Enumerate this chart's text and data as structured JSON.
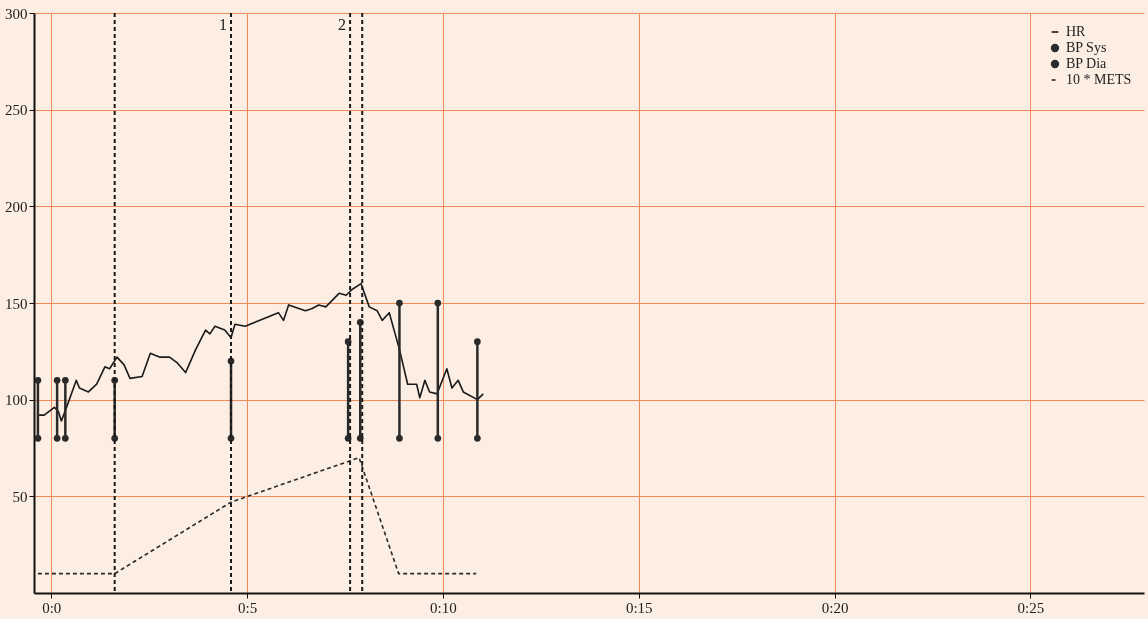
{
  "chart_data": {
    "type": "line",
    "x": [
      -0.31,
      -0.18,
      0.08,
      0.18,
      0.26,
      0.39,
      0.64,
      0.72,
      0.95,
      1.16,
      1.37,
      1.49,
      1.68,
      1.86,
      2.01,
      2.32,
      2.53,
      2.65,
      2.78,
      3.02,
      3.22,
      3.43,
      3.69,
      3.94,
      4.05,
      4.18,
      4.43,
      4.59,
      4.69,
      4.95,
      5.8,
      5.93,
      6.06,
      6.49,
      6.65,
      6.83,
      7.01,
      7.35,
      7.53,
      7.68,
      7.91,
      8.12,
      8.32,
      8.45,
      8.63,
      8.89,
      9.1,
      9.33,
      9.41,
      9.54,
      9.66,
      9.85,
      10.1,
      10.23,
      10.39,
      10.52,
      10.88,
      11.03
    ],
    "series": [
      {
        "name": "HR",
        "color": "#1a1a1a",
        "line_style": "solid",
        "marker": "none",
        "values": [
          92,
          92,
          96,
          94,
          89,
          96,
          110,
          106,
          104,
          108,
          117,
          116,
          122,
          118,
          111,
          112,
          124,
          123,
          122,
          122,
          119,
          114,
          126,
          136,
          134,
          138,
          136,
          132,
          139,
          138,
          145,
          141,
          149,
          146,
          147,
          149,
          148,
          155,
          154,
          157,
          160,
          148,
          146,
          141,
          145,
          126,
          108,
          108,
          101,
          110,
          104,
          103,
          116,
          106,
          110,
          104,
          100,
          103
        ]
      },
      {
        "name": "BP Sys",
        "type": "scatter",
        "color": "#2a2a2a",
        "marker": "circle",
        "x": [
          -0.34,
          0.15,
          0.36,
          1.62,
          4.59,
          7.58,
          7.89,
          8.89,
          9.87,
          10.88
        ],
        "values": [
          110,
          110,
          110,
          110,
          120,
          130,
          140,
          150,
          150,
          130
        ],
        "errors": [
          [
            80,
            110
          ],
          [
            80,
            110
          ],
          [
            80,
            110
          ],
          [
            80,
            110
          ],
          [
            80,
            120
          ],
          [
            80,
            130
          ],
          [
            80,
            140
          ],
          [
            80,
            150
          ],
          [
            80,
            150
          ],
          [
            80,
            130
          ]
        ]
      },
      {
        "name": "BP Dia",
        "type": "scatter",
        "color": "#2a2a2a",
        "marker": "circle",
        "x": [
          -0.34,
          0.15,
          0.36,
          1.62,
          4.59,
          7.58,
          7.89,
          8.89,
          9.87,
          10.88
        ],
        "values": [
          80,
          80,
          80,
          80,
          80,
          80,
          80,
          80,
          80,
          80
        ]
      },
      {
        "name": "10 * METS",
        "type": "line",
        "color": "#2a2a2a",
        "line_style": "dashed",
        "marker": "none",
        "x": [
          -0.34,
          1.62,
          4.59,
          7.86,
          8.87,
          10.85
        ],
        "values": [
          10,
          10,
          47,
          70,
          10,
          10
        ]
      }
    ],
    "xlim": [
      -0.44,
      27.9
    ],
    "xticks": [
      {
        "value": 0,
        "label": "0:0"
      },
      {
        "value": 5,
        "label": "0:5"
      },
      {
        "value": 10,
        "label": "0:10"
      },
      {
        "value": 15,
        "label": "0:15"
      },
      {
        "value": 20,
        "label": "0:20"
      },
      {
        "value": 25,
        "label": "0:25"
      }
    ],
    "ylim": [
      0,
      300
    ],
    "yticks": [
      50,
      100,
      150,
      200,
      250,
      300
    ],
    "ref_lines": [
      {
        "axis": "x",
        "value": 1.62,
        "line_style": "dashed",
        "color": "#1a1a1a"
      },
      {
        "axis": "x",
        "value": 4.59,
        "line_style": "dashed",
        "color": "#1a1a1a"
      },
      {
        "axis": "x",
        "value": 7.63,
        "line_style": "dashed",
        "color": "#1a1a1a"
      },
      {
        "axis": "x",
        "value": 7.94,
        "line_style": "dashed",
        "color": "#1a1a1a"
      }
    ],
    "annotations": [
      {
        "text": "1",
        "x": 4.59,
        "y": 300
      },
      {
        "text": "2",
        "x": 7.63,
        "y": 300
      }
    ],
    "grid": true,
    "legend": "top right"
  }
}
